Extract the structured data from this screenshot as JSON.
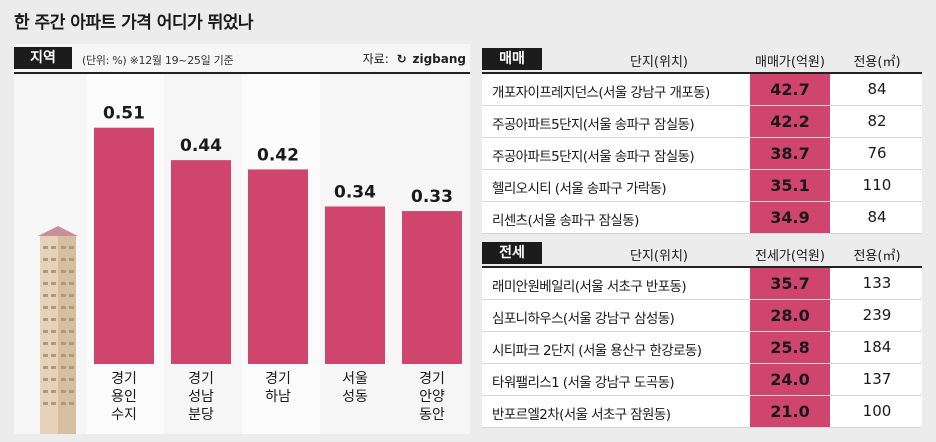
{
  "headline": "한 주간 아파트 가격 어디가 뛰었나",
  "left": {
    "tag": "지역",
    "unit_note": "(단위: %)  ※12월 19~25일 기준",
    "source_label": "자료:",
    "source_brand": "zigbang"
  },
  "chart_data": {
    "type": "bar",
    "categories": [
      "경기 용인 수지",
      "경기 성남 분당",
      "경기 하남",
      "서울 성동",
      "경기 안양 동안"
    ],
    "category_lines": [
      [
        "경기",
        "용인",
        "수지"
      ],
      [
        "경기",
        "성남",
        "분당"
      ],
      [
        "경기",
        "하남"
      ],
      [
        "서울",
        "성동"
      ],
      [
        "경기",
        "안양",
        "동안"
      ]
    ],
    "values": [
      0.51,
      0.44,
      0.42,
      0.34,
      0.33
    ],
    "value_labels": [
      "0.51",
      "0.44",
      "0.42",
      "0.34",
      "0.33"
    ],
    "ylim": [
      0,
      0.6
    ],
    "bar_color": "#d0456e",
    "grid": false
  },
  "sale": {
    "tag": "매매",
    "col_complex": "단지(위치)",
    "col_price": "매매가(억원)",
    "col_area": "전용(㎡)",
    "rows": [
      {
        "complex": "개포자이프레지던스(서울 강남구 개포동)",
        "price": "42.7",
        "area": "84"
      },
      {
        "complex": "주공아파트5단지(서울 송파구 잠실동)",
        "price": "42.2",
        "area": "82"
      },
      {
        "complex": "주공아파트5단지(서울 송파구 잠실동)",
        "price": "38.7",
        "area": "76"
      },
      {
        "complex": "헬리오시티 (서울 송파구 가락동)",
        "price": "35.1",
        "area": "110"
      },
      {
        "complex": "리센츠(서울 송파구 잠실동)",
        "price": "34.9",
        "area": "84"
      }
    ]
  },
  "lease": {
    "tag": "전세",
    "col_complex": "단지(위치)",
    "col_price": "전세가(억원)",
    "col_area": "전용(㎡)",
    "rows": [
      {
        "complex": "래미안원베일리(서울 서초구 반포동)",
        "price": "35.7",
        "area": "133"
      },
      {
        "complex": "심포니하우스(서울 강남구 삼성동)",
        "price": "28.0",
        "area": "239"
      },
      {
        "complex": "시티파크 2단지 (서울 용산구 한강로동)",
        "price": "25.8",
        "area": "184"
      },
      {
        "complex": "타워팰리스1 (서울 강남구 도곡동)",
        "price": "24.0",
        "area": "137"
      },
      {
        "complex": "반포르엘2차(서울 서초구 잠원동)",
        "price": "21.0",
        "area": "100"
      }
    ]
  },
  "colors": {
    "accent": "#d0456e",
    "dark": "#1c1c1c",
    "panel": "#f6f6f6"
  }
}
